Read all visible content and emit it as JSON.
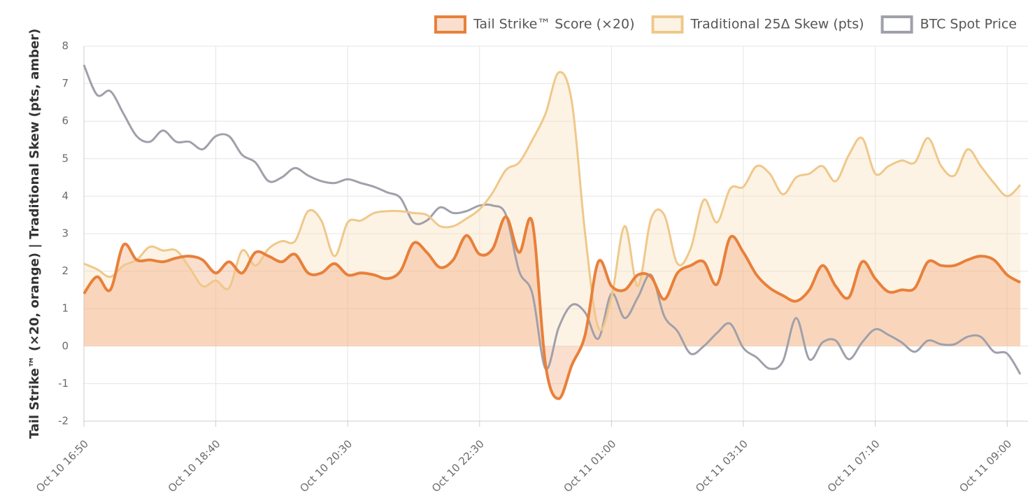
{
  "chart_data": {
    "type": "line",
    "ylabel": "Tail Strike™ (×20, orange) | Traditional Skew (pts, amber)",
    "categories": [
      "Oct 10 16:50",
      null,
      null,
      null,
      null,
      null,
      null,
      null,
      null,
      null,
      "Oct 10 18:40",
      null,
      null,
      null,
      null,
      null,
      null,
      null,
      null,
      null,
      "Oct 10 20:30",
      null,
      null,
      null,
      null,
      null,
      null,
      null,
      null,
      null,
      "Oct 10 22:30",
      null,
      null,
      null,
      null,
      null,
      null,
      null,
      null,
      null,
      "Oct 11 01:00",
      null,
      null,
      null,
      null,
      null,
      null,
      null,
      null,
      null,
      "Oct 11 03:10",
      null,
      null,
      null,
      null,
      null,
      null,
      null,
      null,
      null,
      "Oct 11 07:10",
      null,
      null,
      null,
      null,
      null,
      null,
      null,
      null,
      null,
      "Oct 11 09:00",
      null
    ],
    "series": [
      {
        "name": "Tail Strike™ Score (×20)",
        "color": "#e8803a",
        "fill": "rgba(240,140,80,0.28)",
        "values": [
          1.4,
          1.85,
          1.5,
          2.7,
          2.3,
          2.3,
          2.25,
          2.35,
          2.4,
          2.3,
          1.95,
          2.25,
          1.95,
          2.5,
          2.4,
          2.25,
          2.45,
          1.95,
          1.95,
          2.2,
          1.9,
          1.95,
          1.9,
          1.8,
          2.0,
          2.75,
          2.5,
          2.1,
          2.3,
          2.95,
          2.45,
          2.6,
          3.45,
          2.5,
          3.3,
          -0.5,
          -1.4,
          -0.5,
          0.3,
          2.25,
          1.6,
          1.5,
          1.9,
          1.85,
          1.25,
          1.95,
          2.15,
          2.25,
          1.65,
          2.9,
          2.5,
          1.9,
          1.55,
          1.35,
          1.2,
          1.5,
          2.15,
          1.6,
          1.3,
          2.25,
          1.8,
          1.45,
          1.5,
          1.55,
          2.25,
          2.15,
          2.15,
          2.3,
          2.4,
          2.3,
          1.9,
          1.7
        ]
      },
      {
        "name": "Traditional 25Δ Skew (pts)",
        "color": "#efc88a",
        "fill": "rgba(250,225,190,0.4)",
        "values": [
          2.2,
          2.05,
          1.85,
          2.15,
          2.3,
          2.65,
          2.55,
          2.55,
          2.1,
          1.6,
          1.75,
          1.55,
          2.55,
          2.15,
          2.6,
          2.8,
          2.8,
          3.6,
          3.35,
          2.4,
          3.3,
          3.35,
          3.55,
          3.6,
          3.6,
          3.55,
          3.5,
          3.2,
          3.2,
          3.4,
          3.65,
          4.1,
          4.7,
          4.9,
          5.5,
          6.2,
          7.3,
          6.5,
          3.0,
          0.5,
          1.3,
          3.2,
          1.6,
          3.4,
          3.5,
          2.2,
          2.6,
          3.9,
          3.3,
          4.2,
          4.25,
          4.8,
          4.6,
          4.05,
          4.5,
          4.6,
          4.8,
          4.4,
          5.1,
          5.55,
          4.6,
          4.8,
          4.95,
          4.9,
          5.55,
          4.8,
          4.55,
          5.25,
          4.8,
          4.35,
          4.0,
          4.3
        ]
      },
      {
        "name": "BTC Spot Price",
        "color": "#a0a0ab",
        "values": [
          7.5,
          6.7,
          6.8,
          6.2,
          5.6,
          5.45,
          5.75,
          5.45,
          5.45,
          5.25,
          5.6,
          5.6,
          5.1,
          4.9,
          4.4,
          4.5,
          4.75,
          4.55,
          4.4,
          4.35,
          4.45,
          4.35,
          4.25,
          4.1,
          3.95,
          3.3,
          3.35,
          3.7,
          3.55,
          3.6,
          3.75,
          3.75,
          3.5,
          2.0,
          1.4,
          -0.6,
          0.5,
          1.1,
          0.9,
          0.2,
          1.4,
          0.75,
          1.3,
          1.9,
          0.8,
          0.4,
          -0.2,
          0.0,
          0.35,
          0.6,
          -0.05,
          -0.3,
          -0.6,
          -0.4,
          0.75,
          -0.35,
          0.1,
          0.15,
          -0.35,
          0.1,
          0.45,
          0.3,
          0.1,
          -0.15,
          0.15,
          0.05,
          0.05,
          0.25,
          0.25,
          -0.15,
          -0.2,
          -0.75
        ]
      }
    ],
    "ylim": [
      -2,
      8
    ],
    "yticks": [
      -2,
      -1,
      0,
      1,
      2,
      3,
      4,
      5,
      6,
      7,
      8
    ],
    "grid": true,
    "legend": "top-right"
  }
}
